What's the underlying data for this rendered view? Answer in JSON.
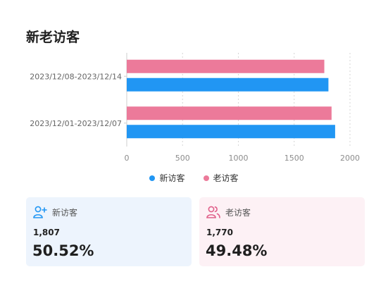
{
  "title": "新老访客",
  "colors": {
    "new": "#2196f3",
    "old": "#ec7a9a"
  },
  "chart_data": {
    "type": "bar",
    "orientation": "horizontal",
    "categories": [
      "2023/12/08-2023/12/14",
      "2023/12/01-2023/12/07"
    ],
    "series": [
      {
        "name": "老访客",
        "values": [
          1770,
          1835
        ]
      },
      {
        "name": "新访客",
        "values": [
          1807,
          1867
        ]
      }
    ],
    "xlim": [
      0,
      2000
    ],
    "xticks": [
      "0",
      "500",
      "1000",
      "1500",
      "2000"
    ],
    "grid": true,
    "legend": "bottom"
  },
  "legend": {
    "new_label": "新访客",
    "old_label": "老访客"
  },
  "cards": {
    "new": {
      "icon": "user-add-icon",
      "label": "新访客",
      "count": "1,807",
      "percent": "50.52%"
    },
    "old": {
      "icon": "users-icon",
      "label": "老访客",
      "count": "1,770",
      "percent": "49.48%"
    }
  }
}
